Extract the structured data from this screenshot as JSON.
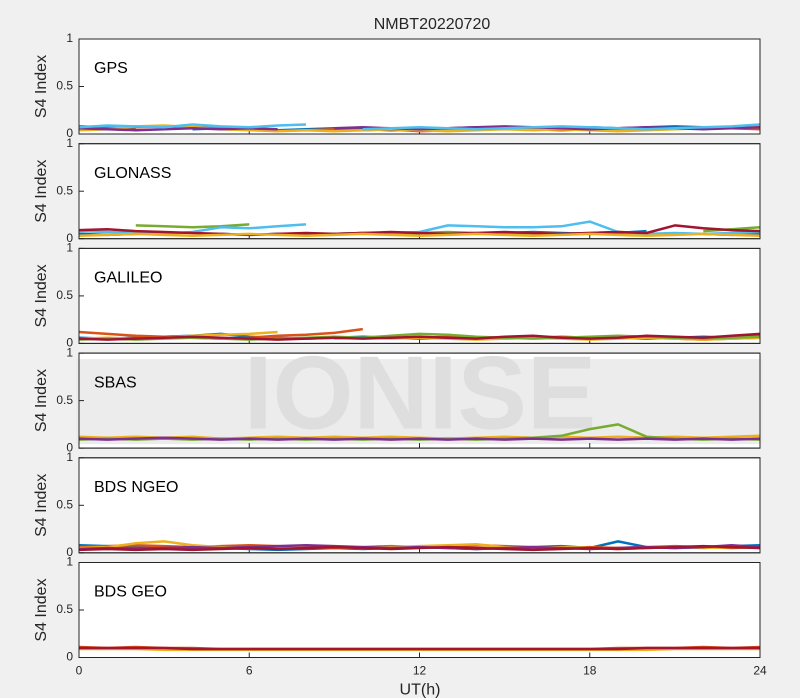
{
  "title": "NMBT20220720",
  "watermark": "IONISE",
  "chart_data": [
    {
      "type": "line",
      "label": "GPS",
      "ylabel": "S4 Index",
      "xlim": [
        0,
        24
      ],
      "xticks": [
        0,
        6,
        12,
        18,
        24
      ],
      "ylim": [
        0,
        1
      ],
      "yticks": [
        0,
        0.5,
        1
      ],
      "x": [
        0,
        1,
        2,
        3,
        4,
        5,
        6,
        7,
        8,
        9,
        10,
        11,
        12,
        13,
        14,
        15,
        16,
        17,
        18,
        19,
        20,
        21,
        22,
        23,
        24
      ],
      "series": [
        {
          "color": "#0072BD",
          "values": [
            0.08,
            0.07,
            0.06,
            null,
            0.05,
            0.06,
            0.05,
            0.04,
            0.05,
            0.06,
            0.05,
            0.04,
            0.05,
            0.06,
            0.07,
            0.06,
            0.05,
            0.06,
            0.07,
            0.06,
            0.07,
            0.08,
            0.07,
            0.06,
            0.08
          ]
        },
        {
          "color": "#D95319",
          "values": [
            0.05,
            0.06,
            0.07,
            0.08,
            0.07,
            0.06,
            0.05,
            null,
            0.04,
            0.05,
            0.04,
            0.05,
            0.03,
            0.04,
            0.05,
            0.06,
            0.05,
            0.04,
            0.05,
            0.04,
            0.05,
            0.06,
            0.07,
            0.06,
            0.05
          ]
        },
        {
          "color": "#EDB120",
          "values": [
            0.04,
            0.05,
            0.08,
            0.09,
            0.07,
            0.05,
            0.04,
            0.03,
            0.04,
            0.03,
            0.04,
            0.05,
            0.04,
            0.03,
            0.04,
            0.05,
            0.04,
            0.05,
            0.04,
            0.03,
            0.04,
            0.05,
            0.06,
            0.07,
            0.09
          ]
        },
        {
          "color": "#7E2F8E",
          "values": [
            0.06,
            0.05,
            0.04,
            0.05,
            0.06,
            0.05,
            0.06,
            0.05,
            null,
            0.06,
            0.07,
            0.06,
            0.05,
            0.06,
            0.07,
            0.08,
            0.07,
            0.06,
            0.05,
            0.06,
            0.07,
            0.06,
            0.05,
            0.06,
            0.07
          ]
        },
        {
          "color": "#4DBEEE",
          "values": [
            0.07,
            0.09,
            0.08,
            0.07,
            0.1,
            0.08,
            0.07,
            0.09,
            0.1,
            null,
            0.05,
            0.06,
            0.07,
            0.06,
            0.05,
            0.06,
            0.07,
            0.08,
            0.07,
            0.06,
            0.05,
            0.06,
            0.07,
            0.08,
            0.1
          ]
        }
      ]
    },
    {
      "type": "line",
      "label": "GLONASS",
      "ylabel": "S4 Index",
      "xlim": [
        0,
        24
      ],
      "xticks": [
        0,
        6,
        12,
        18,
        24
      ],
      "ylim": [
        0,
        1
      ],
      "yticks": [
        0,
        0.5,
        1
      ],
      "x": [
        0,
        1,
        2,
        3,
        4,
        5,
        6,
        7,
        8,
        9,
        10,
        11,
        12,
        13,
        14,
        15,
        16,
        17,
        18,
        19,
        20,
        21,
        22,
        23,
        24
      ],
      "series": [
        {
          "color": "#0072BD",
          "values": [
            0.05,
            0.04,
            0.05,
            0.06,
            null,
            0.05,
            0.04,
            0.05,
            0.04,
            0.05,
            0.06,
            0.05,
            0.04,
            null,
            0.05,
            0.06,
            0.07,
            0.06,
            0.05,
            0.06,
            0.08,
            null,
            0.05,
            0.04,
            0.05
          ]
        },
        {
          "color": "#77AC30",
          "values": [
            null,
            null,
            0.14,
            0.13,
            0.12,
            0.13,
            0.15,
            null,
            null,
            0.05,
            0.06,
            0.05,
            0.06,
            0.07,
            0.06,
            0.05,
            0.06,
            0.05,
            0.06,
            0.07,
            0.06,
            null,
            0.08,
            0.1,
            0.12
          ]
        },
        {
          "color": "#4DBEEE",
          "values": [
            0.08,
            0.07,
            0.06,
            0.05,
            0.07,
            0.12,
            0.11,
            0.13,
            0.15,
            null,
            0.05,
            0.06,
            0.07,
            0.14,
            0.13,
            0.12,
            0.12,
            0.13,
            0.18,
            0.07,
            0.05,
            0.06,
            0.05,
            0.06,
            0.07
          ]
        },
        {
          "color": "#A2142F",
          "values": [
            0.09,
            0.1,
            0.08,
            0.07,
            0.06,
            0.05,
            0.04,
            0.05,
            0.06,
            0.05,
            0.06,
            0.07,
            0.06,
            0.05,
            0.06,
            0.07,
            0.06,
            0.05,
            0.06,
            0.07,
            0.06,
            0.14,
            0.11,
            0.09,
            0.08
          ]
        },
        {
          "color": "#EDB120",
          "values": [
            0.03,
            0.04,
            0.05,
            0.04,
            0.03,
            0.04,
            0.05,
            0.04,
            0.03,
            0.04,
            0.05,
            0.04,
            0.03,
            0.04,
            0.05,
            0.04,
            0.03,
            0.04,
            0.05,
            0.04,
            0.03,
            0.04,
            0.05,
            0.04,
            0.03
          ]
        }
      ]
    },
    {
      "type": "line",
      "label": "GALILEO",
      "ylabel": "S4 Index",
      "xlim": [
        0,
        24
      ],
      "xticks": [
        0,
        6,
        12,
        18,
        24
      ],
      "ylim": [
        0,
        1
      ],
      "yticks": [
        0,
        0.5,
        1
      ],
      "x": [
        0,
        1,
        2,
        3,
        4,
        5,
        6,
        7,
        8,
        9,
        10,
        11,
        12,
        13,
        14,
        15,
        16,
        17,
        18,
        19,
        20,
        21,
        22,
        23,
        24
      ],
      "series": [
        {
          "color": "#0072BD",
          "values": [
            0.06,
            0.05,
            0.06,
            0.07,
            0.08,
            0.1,
            0.07,
            0.06,
            0.05,
            0.06,
            0.07,
            0.06,
            0.05,
            0.06,
            0.05,
            0.06,
            0.07,
            0.06,
            0.05,
            0.06,
            0.05,
            0.06,
            0.07,
            0.06,
            0.08
          ]
        },
        {
          "color": "#D95319",
          "values": [
            0.12,
            0.1,
            0.08,
            0.07,
            0.06,
            0.05,
            0.06,
            0.08,
            0.09,
            0.11,
            0.15,
            null,
            0.06,
            0.07,
            0.06,
            0.05,
            0.06,
            0.07,
            0.06,
            0.07,
            0.06,
            0.05,
            0.04,
            0.05,
            0.06
          ]
        },
        {
          "color": "#EDB120",
          "values": [
            0.05,
            0.06,
            0.05,
            0.06,
            0.08,
            0.09,
            0.1,
            0.12,
            null,
            0.05,
            0.06,
            0.05,
            0.06,
            0.05,
            0.04,
            0.05,
            0.06,
            0.05,
            0.04,
            0.05,
            0.06,
            0.05,
            0.04,
            0.05,
            0.06
          ]
        },
        {
          "color": "#77AC30",
          "values": [
            0.04,
            0.05,
            0.04,
            0.05,
            0.06,
            0.05,
            0.04,
            0.05,
            0.06,
            0.07,
            0.06,
            0.08,
            0.1,
            0.09,
            0.07,
            0.06,
            0.05,
            0.06,
            0.07,
            0.08,
            0.07,
            0.06,
            0.05,
            0.06,
            0.07
          ]
        },
        {
          "color": "#A2142F",
          "values": [
            0.05,
            0.04,
            0.05,
            0.06,
            0.07,
            0.06,
            0.05,
            0.04,
            0.05,
            0.06,
            0.05,
            0.06,
            0.07,
            0.06,
            0.05,
            0.07,
            0.08,
            0.06,
            0.05,
            0.06,
            0.08,
            0.07,
            0.06,
            0.08,
            0.1
          ]
        }
      ]
    },
    {
      "type": "line",
      "label": "SBAS",
      "ylabel": "S4 Index",
      "xlim": [
        0,
        24
      ],
      "xticks": [
        0,
        6,
        12,
        18,
        24
      ],
      "ylim": [
        0,
        1
      ],
      "yticks": [
        0,
        0.5,
        1
      ],
      "x": [
        0,
        1,
        2,
        3,
        4,
        5,
        6,
        7,
        8,
        9,
        10,
        11,
        12,
        13,
        14,
        15,
        16,
        17,
        18,
        19,
        20,
        21,
        22,
        23,
        24
      ],
      "series": [
        {
          "color": "#EDB120",
          "values": [
            0.12,
            0.11,
            0.12,
            0.11,
            0.12,
            0.1,
            0.11,
            0.12,
            0.11,
            0.12,
            0.11,
            0.12,
            0.11,
            0.1,
            0.11,
            0.12,
            0.11,
            0.12,
            0.11,
            0.12,
            0.11,
            0.12,
            0.11,
            0.12,
            0.13
          ]
        },
        {
          "color": "#77AC30",
          "values": [
            0.09,
            0.1,
            0.09,
            0.1,
            0.09,
            0.1,
            0.09,
            0.1,
            0.09,
            0.1,
            0.09,
            0.1,
            0.09,
            0.1,
            0.09,
            0.1,
            0.11,
            0.13,
            0.2,
            0.25,
            0.12,
            0.1,
            0.09,
            0.1,
            0.09
          ]
        },
        {
          "color": "#7E2F8E",
          "values": [
            0.1,
            0.09,
            0.1,
            0.11,
            0.1,
            0.09,
            0.1,
            0.09,
            0.1,
            0.09,
            0.1,
            0.09,
            0.1,
            0.09,
            0.1,
            0.09,
            0.1,
            0.09,
            0.1,
            0.09,
            0.1,
            0.09,
            0.1,
            0.09,
            0.1
          ]
        }
      ]
    },
    {
      "type": "line",
      "label": "BDS NGEO",
      "ylabel": "S4 Index",
      "xlim": [
        0,
        24
      ],
      "xticks": [
        0,
        6,
        12,
        18,
        24
      ],
      "ylim": [
        0,
        1
      ],
      "yticks": [
        0,
        0.5,
        1
      ],
      "x": [
        0,
        1,
        2,
        3,
        4,
        5,
        6,
        7,
        8,
        9,
        10,
        11,
        12,
        13,
        14,
        15,
        16,
        17,
        18,
        19,
        20,
        21,
        22,
        23,
        24
      ],
      "series": [
        {
          "color": "#0072BD",
          "values": [
            0.08,
            0.07,
            0.06,
            0.05,
            0.04,
            0.05,
            0.04,
            0.03,
            0.04,
            0.05,
            0.04,
            0.05,
            0.06,
            0.05,
            0.04,
            0.05,
            0.06,
            0.07,
            0.05,
            0.12,
            0.06,
            0.05,
            0.06,
            0.07,
            0.08
          ]
        },
        {
          "color": "#D95319",
          "values": [
            0.06,
            0.07,
            0.08,
            0.07,
            0.06,
            0.07,
            0.08,
            0.07,
            0.06,
            0.05,
            0.06,
            0.07,
            0.06,
            0.07,
            0.08,
            0.07,
            0.06,
            0.05,
            0.06,
            0.05,
            0.06,
            0.07,
            0.06,
            0.05,
            0.06
          ]
        },
        {
          "color": "#EDB120",
          "values": [
            0.05,
            0.06,
            0.1,
            0.12,
            0.08,
            0.06,
            0.05,
            0.06,
            0.07,
            0.06,
            0.05,
            0.06,
            0.07,
            0.08,
            0.09,
            0.06,
            0.05,
            0.06,
            0.05,
            0.04,
            0.05,
            0.06,
            0.05,
            0.06,
            0.05
          ]
        },
        {
          "color": "#7E2F8E",
          "values": [
            0.04,
            0.05,
            0.04,
            0.05,
            0.06,
            0.05,
            0.06,
            0.07,
            0.08,
            0.07,
            0.06,
            0.05,
            0.06,
            0.05,
            0.04,
            0.05,
            0.06,
            0.05,
            0.04,
            0.05,
            0.06,
            0.05,
            0.06,
            0.08,
            0.06
          ]
        },
        {
          "color": "#A2142F",
          "values": [
            0.03,
            0.04,
            0.03,
            0.04,
            0.03,
            0.04,
            0.05,
            0.04,
            0.05,
            0.06,
            0.05,
            0.04,
            0.05,
            0.06,
            0.05,
            0.04,
            0.03,
            0.04,
            0.05,
            0.04,
            0.05,
            0.06,
            0.07,
            0.06,
            0.05
          ]
        }
      ]
    },
    {
      "type": "line",
      "label": "BDS GEO",
      "ylabel": "S4 Index",
      "xlabel": "UT(h)",
      "xlim": [
        0,
        24
      ],
      "xticks": [
        0,
        6,
        12,
        18,
        24
      ],
      "ylim": [
        0,
        1
      ],
      "yticks": [
        0,
        0.5,
        1
      ],
      "x": [
        0,
        1,
        2,
        3,
        4,
        5,
        6,
        7,
        8,
        9,
        10,
        11,
        12,
        13,
        14,
        15,
        16,
        17,
        18,
        19,
        20,
        21,
        22,
        23,
        24
      ],
      "series": [
        {
          "color": "#D95319",
          "values": [
            0.11,
            0.1,
            0.11,
            0.1,
            0.1,
            0.09,
            0.09,
            0.09,
            0.09,
            0.09,
            0.09,
            0.09,
            0.09,
            0.09,
            0.09,
            0.09,
            0.09,
            0.09,
            0.09,
            0.1,
            0.1,
            0.1,
            0.11,
            0.1,
            0.11
          ]
        },
        {
          "color": "#EDB120",
          "values": [
            0.09,
            0.09,
            0.09,
            0.08,
            0.08,
            0.08,
            0.08,
            0.08,
            0.08,
            0.08,
            0.08,
            0.08,
            0.08,
            0.08,
            0.08,
            0.08,
            0.08,
            0.08,
            0.08,
            0.08,
            0.08,
            0.09,
            0.09,
            0.09,
            0.09
          ]
        },
        {
          "color": "#A2142F",
          "values": [
            0.1,
            0.1,
            0.1,
            0.1,
            0.09,
            0.09,
            0.09,
            0.09,
            0.09,
            0.09,
            0.09,
            0.09,
            0.09,
            0.09,
            0.09,
            0.09,
            0.09,
            0.09,
            0.09,
            0.09,
            0.1,
            0.1,
            0.1,
            0.1,
            0.1
          ]
        }
      ]
    }
  ]
}
